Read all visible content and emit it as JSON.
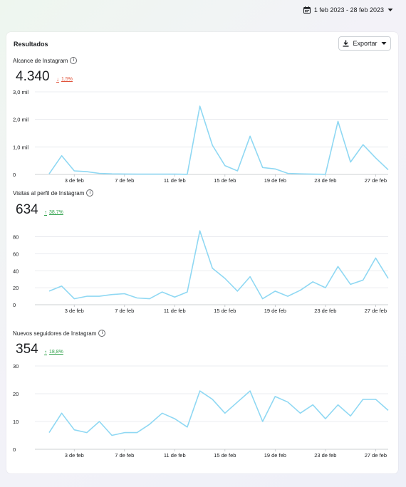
{
  "header": {
    "date_range": "1 feb 2023 - 28 feb 2023"
  },
  "card": {
    "title": "Resultados",
    "export_label": "Exportar"
  },
  "colors": {
    "line": "#8fd8f3",
    "grid": "#e4e6eb",
    "down": "#e0533a",
    "up": "#31a24c"
  },
  "metrics": [
    {
      "label": "Alcance de Instagram",
      "value": "4.340",
      "delta": "1,5%",
      "direction": "down"
    },
    {
      "label": "Visitas al perfil de Instagram",
      "value": "634",
      "delta": "38,7%",
      "direction": "up"
    },
    {
      "label": "Nuevos seguidores de Instagram",
      "value": "354",
      "delta": "18,8%",
      "direction": "up"
    }
  ],
  "chart_data": [
    {
      "type": "line",
      "title": "Alcance de Instagram",
      "x": [
        "1 feb",
        "2 feb",
        "3 feb",
        "4 feb",
        "5 feb",
        "6 feb",
        "7 feb",
        "8 feb",
        "9 feb",
        "10 feb",
        "11 feb",
        "12 feb",
        "13 feb",
        "14 feb",
        "15 feb",
        "16 feb",
        "17 feb",
        "18 feb",
        "19 feb",
        "20 feb",
        "21 feb",
        "22 feb",
        "23 feb",
        "24 feb",
        "25 feb",
        "26 feb",
        "27 feb",
        "28 feb"
      ],
      "xtick_labels": [
        "3 de feb",
        "7 de feb",
        "11 de feb",
        "15 de feb",
        "19 de feb",
        "23 de feb",
        "27 de feb"
      ],
      "yticks": [
        0,
        1000,
        2000,
        3000
      ],
      "ytick_labels": [
        "0",
        "1,0 mil",
        "2,0 mil",
        "3,0 mil"
      ],
      "ylim": [
        0,
        3000
      ],
      "values": [
        20,
        680,
        130,
        100,
        40,
        20,
        15,
        10,
        10,
        10,
        10,
        5,
        2480,
        1060,
        320,
        130,
        1390,
        250,
        200,
        40,
        20,
        10,
        5,
        1930,
        450,
        1080,
        600,
        170
      ]
    },
    {
      "type": "line",
      "title": "Visitas al perfil de Instagram",
      "x": [
        "1 feb",
        "2 feb",
        "3 feb",
        "4 feb",
        "5 feb",
        "6 feb",
        "7 feb",
        "8 feb",
        "9 feb",
        "10 feb",
        "11 feb",
        "12 feb",
        "13 feb",
        "14 feb",
        "15 feb",
        "16 feb",
        "17 feb",
        "18 feb",
        "19 feb",
        "20 feb",
        "21 feb",
        "22 feb",
        "23 feb",
        "24 feb",
        "25 feb",
        "26 feb",
        "27 feb",
        "28 feb"
      ],
      "xtick_labels": [
        "3 de feb",
        "7 de feb",
        "11 de feb",
        "15 de feb",
        "19 de feb",
        "23 de feb",
        "27 de feb"
      ],
      "yticks": [
        0,
        20,
        40,
        60,
        80
      ],
      "ytick_labels": [
        "0",
        "20",
        "40",
        "60",
        "80"
      ],
      "ylim": [
        0,
        88
      ],
      "values": [
        16,
        22,
        7,
        10,
        10,
        12,
        13,
        8,
        7,
        15,
        9,
        15,
        87,
        43,
        31,
        16,
        33,
        7,
        16,
        10,
        17,
        27,
        20,
        45,
        24,
        29,
        55,
        31
      ]
    },
    {
      "type": "line",
      "title": "Nuevos seguidores de Instagram",
      "x": [
        "1 feb",
        "2 feb",
        "3 feb",
        "4 feb",
        "5 feb",
        "6 feb",
        "7 feb",
        "8 feb",
        "9 feb",
        "10 feb",
        "11 feb",
        "12 feb",
        "13 feb",
        "14 feb",
        "15 feb",
        "16 feb",
        "17 feb",
        "18 feb",
        "19 feb",
        "20 feb",
        "21 feb",
        "22 feb",
        "23 feb",
        "24 feb",
        "25 feb",
        "26 feb",
        "27 feb",
        "28 feb"
      ],
      "xtick_labels": [
        "3 de feb",
        "7 de feb",
        "11 de feb",
        "15 de feb",
        "19 de feb",
        "23 de feb",
        "27 de feb"
      ],
      "yticks": [
        0,
        10,
        20,
        30
      ],
      "ytick_labels": [
        "0",
        "10",
        "20",
        "30"
      ],
      "ylim": [
        0,
        30
      ],
      "values": [
        6,
        13,
        7,
        6,
        10,
        5,
        6,
        6,
        9,
        13,
        11,
        8,
        21,
        18,
        13,
        17,
        21,
        10,
        19,
        17,
        13,
        16,
        11,
        16,
        12,
        18,
        18,
        14
      ]
    }
  ]
}
